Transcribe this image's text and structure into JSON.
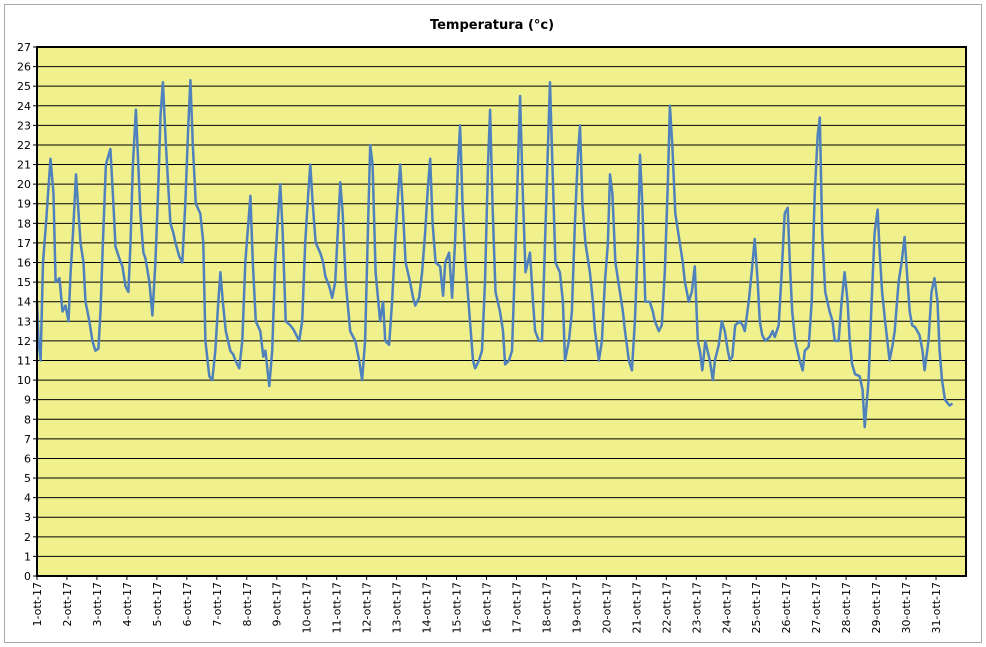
{
  "chart_data": {
    "type": "line",
    "title": "Temperatura (°c)",
    "xlabel": "",
    "ylabel": "",
    "ylim": [
      0,
      27
    ],
    "y_ticks": [
      "0",
      "1",
      "2",
      "3",
      "4",
      "5",
      "6",
      "7",
      "8",
      "9",
      "10",
      "11",
      "12",
      "13",
      "14",
      "15",
      "16",
      "17",
      "18",
      "19",
      "20",
      "21",
      "22",
      "23",
      "24",
      "25",
      "26",
      "27"
    ],
    "x_tick_labels": [
      "1-ott-17",
      "2-ott-17",
      "3-ott-17",
      "4-ott-17",
      "5-ott-17",
      "6-ott-17",
      "7-ott-17",
      "8-ott-17",
      "9-ott-17",
      "10-ott-17",
      "11-ott-17",
      "12-ott-17",
      "13-ott-17",
      "14-ott-17",
      "15-ott-17",
      "16-ott-17",
      "17-ott-17",
      "18-ott-17",
      "19-ott-17",
      "20-ott-17",
      "21-ott-17",
      "22-ott-17",
      "23-ott-17",
      "24-ott-17",
      "25-ott-17",
      "26-ott-17",
      "27-ott-17",
      "28-ott-17",
      "29-ott-17",
      "30-ott-17",
      "31-ott-17"
    ],
    "grid": true,
    "legend": "none",
    "colors": {
      "plot_background": "#f0f08c",
      "line": "#4f81bd",
      "grid": "#000000"
    },
    "x_days": [
      0.0,
      0.05,
      0.12,
      0.2,
      0.3,
      0.45,
      0.55,
      0.62,
      0.75,
      0.85,
      0.95,
      1.05,
      1.12,
      1.2,
      1.3,
      1.45,
      1.55,
      1.62,
      1.75,
      1.85,
      1.95,
      2.05,
      2.12,
      2.2,
      2.3,
      2.45,
      2.55,
      2.62,
      2.75,
      2.85,
      2.95,
      3.05,
      3.12,
      3.2,
      3.3,
      3.45,
      3.55,
      3.62,
      3.75,
      3.85,
      3.95,
      4.05,
      4.12,
      4.2,
      4.3,
      4.45,
      4.55,
      4.62,
      4.75,
      4.85,
      4.95,
      5.05,
      5.12,
      5.2,
      5.3,
      5.45,
      5.55,
      5.62,
      5.75,
      5.85,
      5.95,
      6.05,
      6.12,
      6.2,
      6.3,
      6.45,
      6.55,
      6.62,
      6.75,
      6.85,
      6.95,
      7.05,
      7.12,
      7.2,
      7.3,
      7.45,
      7.55,
      7.62,
      7.75,
      7.85,
      7.95,
      8.05,
      8.12,
      8.2,
      8.3,
      8.45,
      8.55,
      8.62,
      8.75,
      8.85,
      8.95,
      9.05,
      9.12,
      9.2,
      9.3,
      9.45,
      9.55,
      9.62,
      9.75,
      9.85,
      9.95,
      10.05,
      10.12,
      10.2,
      10.3,
      10.45,
      10.55,
      10.62,
      10.75,
      10.85,
      10.95,
      11.05,
      11.12,
      11.2,
      11.3,
      11.45,
      11.55,
      11.62,
      11.75,
      11.85,
      11.95,
      12.05,
      12.12,
      12.2,
      12.3,
      12.45,
      12.55,
      12.62,
      12.75,
      12.85,
      12.95,
      13.05,
      13.12,
      13.2,
      13.3,
      13.45,
      13.55,
      13.62,
      13.75,
      13.85,
      13.95,
      14.05,
      14.12,
      14.2,
      14.3,
      14.45,
      14.55,
      14.62,
      14.75,
      14.85,
      14.95,
      15.05,
      15.12,
      15.2,
      15.3,
      15.45,
      15.55,
      15.62,
      15.75,
      15.85,
      15.95,
      16.05,
      16.12,
      16.2,
      16.3,
      16.45,
      16.55,
      16.62,
      16.75,
      16.85,
      16.95,
      17.05,
      17.12,
      17.2,
      17.3,
      17.45,
      17.55,
      17.62,
      17.75,
      17.85,
      17.95,
      18.05,
      18.12,
      18.2,
      18.3,
      18.45,
      18.55,
      18.62,
      18.75,
      18.85,
      18.95,
      19.05,
      19.12,
      19.2,
      19.3,
      19.45,
      19.55,
      19.62,
      19.75,
      19.85,
      19.95,
      20.05,
      20.12,
      20.2,
      20.3,
      20.45,
      20.55,
      20.62,
      20.75,
      20.85,
      20.95,
      21.05,
      21.12,
      21.2,
      21.3,
      21.45,
      21.55,
      21.62,
      21.75,
      21.85,
      21.95,
      22.05,
      22.12,
      22.2,
      22.3,
      22.45,
      22.55,
      22.62,
      22.75,
      22.85,
      22.95,
      23.05,
      23.12,
      23.2,
      23.3,
      23.45,
      23.55,
      23.62,
      23.75,
      23.85,
      23.95,
      24.05,
      24.12,
      24.2,
      24.3,
      24.45,
      24.55,
      24.62,
      24.75,
      24.85,
      24.95,
      25.05,
      25.12,
      25.2,
      25.3,
      25.45,
      25.55,
      25.62,
      25.75,
      25.85,
      25.95,
      26.05,
      26.12,
      26.2,
      26.3,
      26.45,
      26.55,
      26.62,
      26.75,
      26.85,
      26.95,
      27.05,
      27.12,
      27.2,
      27.3,
      27.45,
      27.55,
      27.62,
      27.75,
      27.85,
      27.95,
      28.05,
      28.12,
      28.2,
      28.3,
      28.45,
      28.55,
      28.62,
      28.75,
      28.85,
      28.95,
      29.05,
      29.12,
      29.2,
      29.3,
      29.45,
      29.55,
      29.62,
      29.75,
      29.85,
      29.95,
      30.05,
      30.12,
      30.2,
      30.3,
      30.45,
      30.55,
      30.62,
      30.75,
      30.85,
      30.95,
      31.0
    ],
    "series": [
      {
        "values": [
          14.0,
          12.0,
          11.0,
          16.0,
          18.0,
          21.3,
          19.5,
          15.0,
          15.2,
          13.5,
          13.8,
          13.0,
          15.5,
          17.5,
          20.5,
          17.0,
          16.0,
          14.0,
          13.0,
          12.0,
          11.5,
          11.6,
          13.5,
          17.0,
          21.0,
          21.8,
          19.0,
          16.8,
          16.2,
          15.8,
          14.8,
          14.5,
          17.0,
          21.0,
          23.8,
          18.5,
          16.5,
          16.2,
          15.0,
          13.3,
          16.0,
          20.0,
          23.5,
          25.2,
          22.0,
          18.0,
          17.5,
          17.0,
          16.3,
          16.0,
          19.0,
          23.0,
          25.3,
          22.0,
          19.0,
          18.5,
          17.0,
          12.0,
          10.2,
          10.0,
          11.5,
          14.0,
          15.5,
          14.0,
          12.5,
          11.5,
          11.3,
          11.0,
          10.6,
          12.0,
          16.0,
          18.0,
          19.4,
          16.0,
          13.0,
          12.5,
          11.2,
          11.5,
          9.7,
          11.5,
          16.0,
          18.5,
          20.0,
          17.5,
          13.0,
          12.8,
          12.6,
          12.4,
          12.0,
          13.0,
          17.0,
          19.5,
          21.0,
          19.0,
          17.0,
          16.5,
          16.0,
          15.3,
          14.8,
          14.2,
          15.0,
          18.0,
          20.1,
          18.5,
          15.0,
          12.5,
          12.2,
          12.0,
          11.0,
          10.0,
          12.0,
          18.0,
          22.0,
          21.0,
          15.5,
          13.0,
          14.0,
          12.0,
          11.8,
          14.0,
          17.0,
          19.5,
          21.0,
          19.0,
          16.0,
          15.0,
          14.2,
          13.8,
          14.2,
          15.5,
          17.5,
          20.0,
          21.3,
          18.0,
          16.0,
          15.8,
          14.3,
          16.0,
          16.5,
          14.2,
          17.0,
          21.0,
          23.0,
          19.0,
          16.0,
          13.0,
          11.0,
          10.6,
          11.0,
          11.5,
          15.0,
          21.0,
          23.8,
          19.0,
          14.5,
          13.5,
          12.5,
          10.8,
          11.0,
          11.5,
          16.0,
          21.0,
          24.5,
          20.0,
          15.5,
          16.5,
          14.0,
          12.5,
          12.0,
          12.0,
          17.0,
          22.0,
          25.2,
          21.0,
          16.0,
          15.5,
          14.0,
          11.0,
          12.0,
          13.5,
          18.0,
          21.5,
          23.0,
          19.0,
          17.0,
          15.5,
          14.0,
          12.5,
          11.0,
          12.0,
          15.0,
          17.0,
          20.5,
          19.5,
          16.0,
          14.5,
          13.5,
          12.5,
          11.0,
          10.5,
          13.0,
          17.0,
          21.5,
          19.0,
          14.0,
          14.0,
          13.5,
          13.0,
          12.5,
          12.8,
          15.5,
          20.0,
          24.0,
          22.0,
          18.5,
          17.0,
          16.0,
          15.0,
          14.0,
          14.5,
          15.8,
          12.0,
          11.5,
          10.5,
          12.0,
          11.0,
          10.0,
          11.0,
          11.8,
          13.0,
          12.5,
          11.5,
          11.0,
          11.2,
          12.8,
          13.0,
          12.8,
          12.5,
          14.0,
          15.5,
          17.2,
          15.0,
          13.0,
          12.3,
          12.0,
          12.2,
          12.5,
          12.2,
          12.8,
          15.5,
          18.5,
          18.8,
          16.0,
          13.5,
          12.0,
          11.0,
          10.5,
          11.5,
          11.7,
          14.0,
          19.5,
          22.5,
          23.4,
          17.5,
          14.5,
          13.5,
          13.0,
          12.0,
          12.0,
          14.0,
          15.5,
          14.0,
          12.0,
          10.8,
          10.3,
          10.2,
          9.5,
          7.6,
          10.0,
          14.0,
          17.5,
          18.7,
          16.5,
          14.5,
          13.0,
          11.0,
          11.8,
          12.5,
          15.0,
          16.0,
          17.3,
          15.0,
          13.5,
          12.8,
          12.7,
          12.3,
          11.5,
          10.5,
          12.0,
          14.5,
          15.2,
          14.0,
          11.5,
          10.0,
          9.0,
          8.7,
          8.8
        ]
      }
    ]
  }
}
